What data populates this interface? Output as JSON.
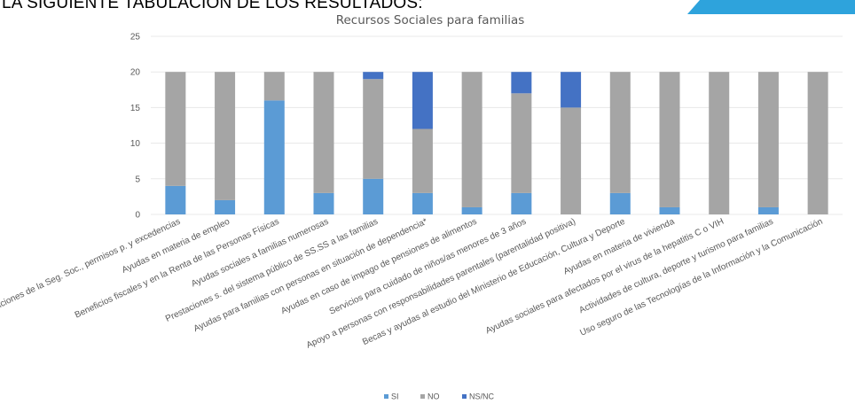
{
  "heading": "LA SIGUIENTE TABULACION DE LOS RESULTADOS:",
  "colors": {
    "si": "#5b9bd5",
    "no": "#a5a5a5",
    "nsnc": "#4472c4",
    "grid": "#e8e8e8",
    "accent": "#2ea3dc"
  },
  "chart_data": {
    "type": "bar",
    "stacked": true,
    "title": "Recursos  Sociales para familias",
    "xlabel": "",
    "ylabel": "",
    "ylim": [
      0,
      25
    ],
    "yticks": [
      "0",
      "5",
      "10",
      "15",
      "20",
      "25"
    ],
    "grid": true,
    "legend_position": "bottom",
    "categories": [
      "Prestaciones  de la Seg. Soc., permisos p. y excedencias",
      "Ayudas en materia de empleo",
      "Beneficios fiscales y en la  Renta de las Personas Físicas",
      "Ayudas sociales a familias numerosas",
      "Prestaciones s. del sistema público de SS.SS a las familias",
      "Ayudas para familias con personas en situación de dependencia*",
      "Ayudas en caso de impago de pensiones de alimentos",
      "Servicios para cuidado de niños/as menores de 3 años",
      "Apoyo a  personas con responsabilidades parentales (parentalidad positiva)",
      "Becas y ayudas al estudio del Ministerio de Educación, Cultura y Deporte",
      "Ayudas en materia de vivienda",
      "Ayudas sociales para afectados por el virus de la hepatitis C o VIH",
      "Actividades de cultura, deporte y turismo para familias",
      "Uso seguro de las Tecnologías de la Información y la Comunicación"
    ],
    "series": [
      {
        "name": "SI",
        "values": [
          4,
          2,
          16,
          3,
          5,
          3,
          1,
          3,
          0,
          3,
          1,
          0,
          1,
          0
        ]
      },
      {
        "name": "NO",
        "values": [
          16,
          18,
          4,
          17,
          14,
          9,
          19,
          14,
          15,
          17,
          19,
          20,
          19,
          20
        ]
      },
      {
        "name": "NS/NC",
        "values": [
          0,
          0,
          0,
          0,
          1,
          8,
          0,
          3,
          5,
          0,
          0,
          0,
          0,
          0
        ]
      }
    ]
  }
}
